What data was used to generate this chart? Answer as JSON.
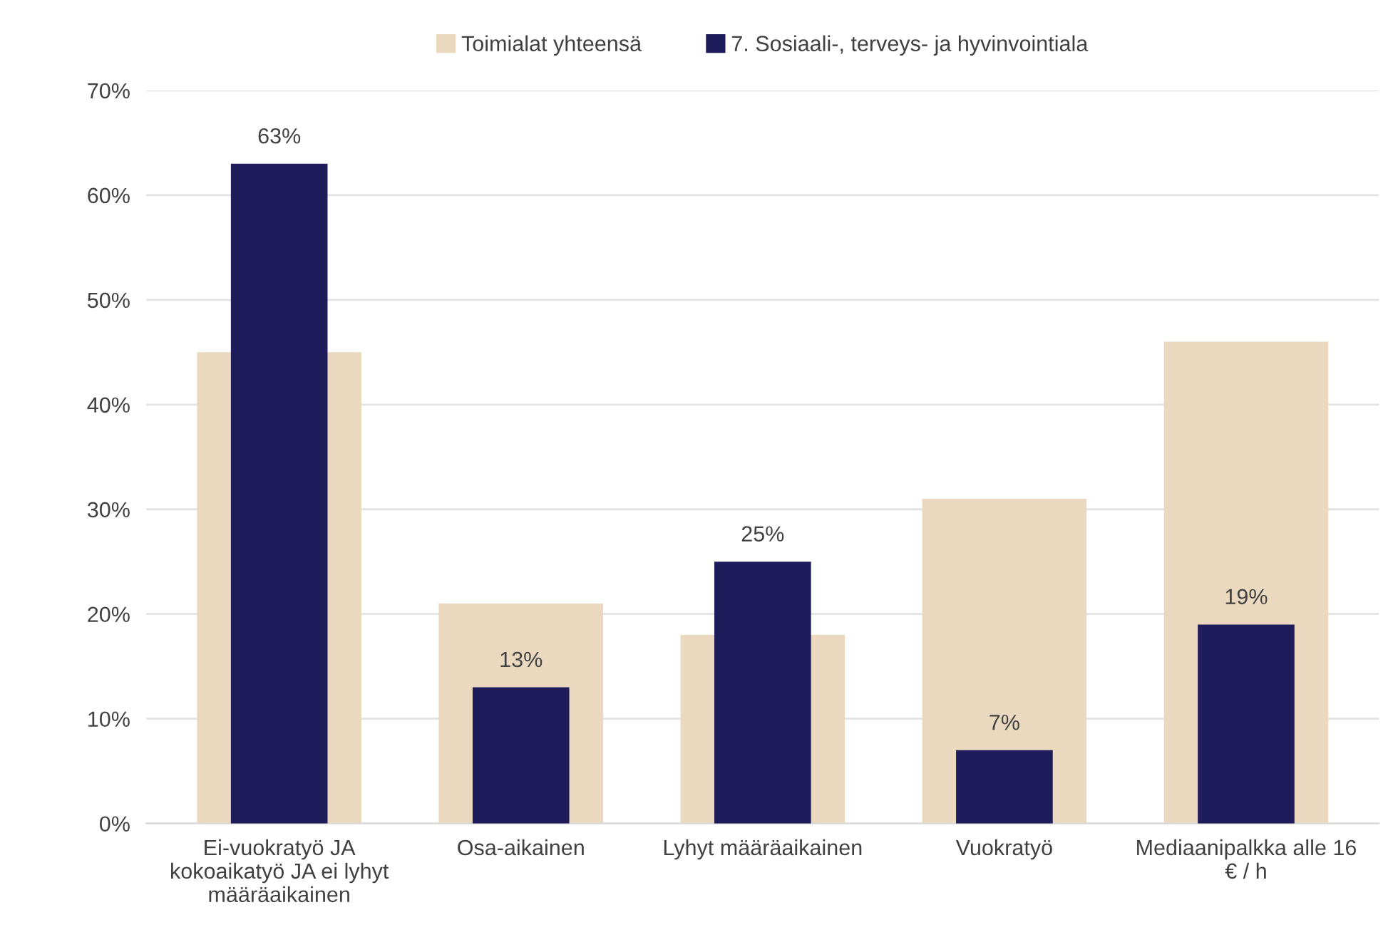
{
  "chart_data": {
    "type": "bar",
    "categories": [
      "Ei-vuokratyö JA kokoaikatyö JA ei lyhyt määräaikainen",
      "Osa-aikainen",
      "Lyhyt määräaikainen",
      "Vuokratyö",
      "Mediaanipalkka alle 16 € / h"
    ],
    "series": [
      {
        "name": "Toimialat yhteensä",
        "color": "#ead9bf",
        "values": [
          45,
          21,
          18,
          31,
          46
        ]
      },
      {
        "name": "7. Sosiaali-, terveys- ja hyvinvointiala",
        "color": "#1e1c5a",
        "values": [
          63,
          13,
          25,
          7,
          19
        ],
        "value_labels": [
          "63%",
          "13%",
          "25%",
          "7%",
          "19%"
        ]
      }
    ],
    "ylim": [
      0,
      70
    ],
    "yticks": [
      {
        "value": 0,
        "label": "0%"
      },
      {
        "value": 10,
        "label": "10%"
      },
      {
        "value": 20,
        "label": "20%"
      },
      {
        "value": 30,
        "label": "30%"
      },
      {
        "value": 40,
        "label": "40%"
      },
      {
        "value": 50,
        "label": "50%"
      },
      {
        "value": 60,
        "label": "60%"
      },
      {
        "value": 70,
        "label": "70%"
      }
    ],
    "grid": "y",
    "legend": "top"
  }
}
